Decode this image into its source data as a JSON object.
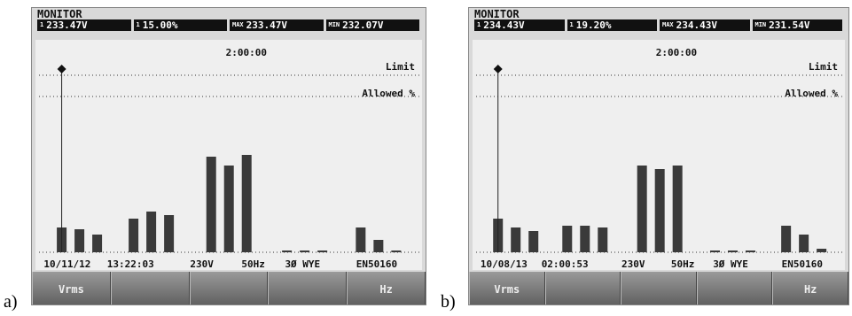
{
  "panels": [
    {
      "label": "a)",
      "header": "MONITOR",
      "readings": [
        {
          "prefix": "1",
          "value": "233.47V"
        },
        {
          "prefix": "1",
          "value": "15.00%"
        },
        {
          "prefix": "MAX",
          "value": "233.47V"
        },
        {
          "prefix": "MIN",
          "value": "232.07V"
        }
      ],
      "timer": "2:00:00",
      "limit": "Limit",
      "allowed": "Allowed %",
      "ylim": [
        0,
        100
      ],
      "bars": [
        14,
        13,
        10,
        19,
        23,
        21,
        54,
        49,
        55,
        1,
        1,
        1,
        14,
        7,
        1
      ],
      "status": [
        "10/11/12",
        "13:22:03",
        "230V",
        "50Hz",
        "3Ø WYE",
        "EN50160"
      ],
      "buttons": [
        "Vrms",
        "",
        "",
        "",
        "Hz"
      ]
    },
    {
      "label": "b)",
      "header": "MONITOR",
      "readings": [
        {
          "prefix": "1",
          "value": "234.43V"
        },
        {
          "prefix": "1",
          "value": "19.20%"
        },
        {
          "prefix": "MAX",
          "value": "234.43V"
        },
        {
          "prefix": "MIN",
          "value": "231.54V"
        }
      ],
      "timer": "2:00:00",
      "limit": "Limit",
      "allowed": "Allowed %",
      "ylim": [
        0,
        100
      ],
      "bars": [
        19,
        14,
        12,
        15,
        15,
        14,
        49,
        47,
        49,
        1,
        1,
        1,
        15,
        10,
        2
      ],
      "status": [
        "10/08/13",
        "02:00:53",
        "230V",
        "50Hz",
        "3Ø WYE",
        "EN50160"
      ],
      "buttons": [
        "Vrms",
        "",
        "",
        "",
        "Hz"
      ]
    }
  ]
}
